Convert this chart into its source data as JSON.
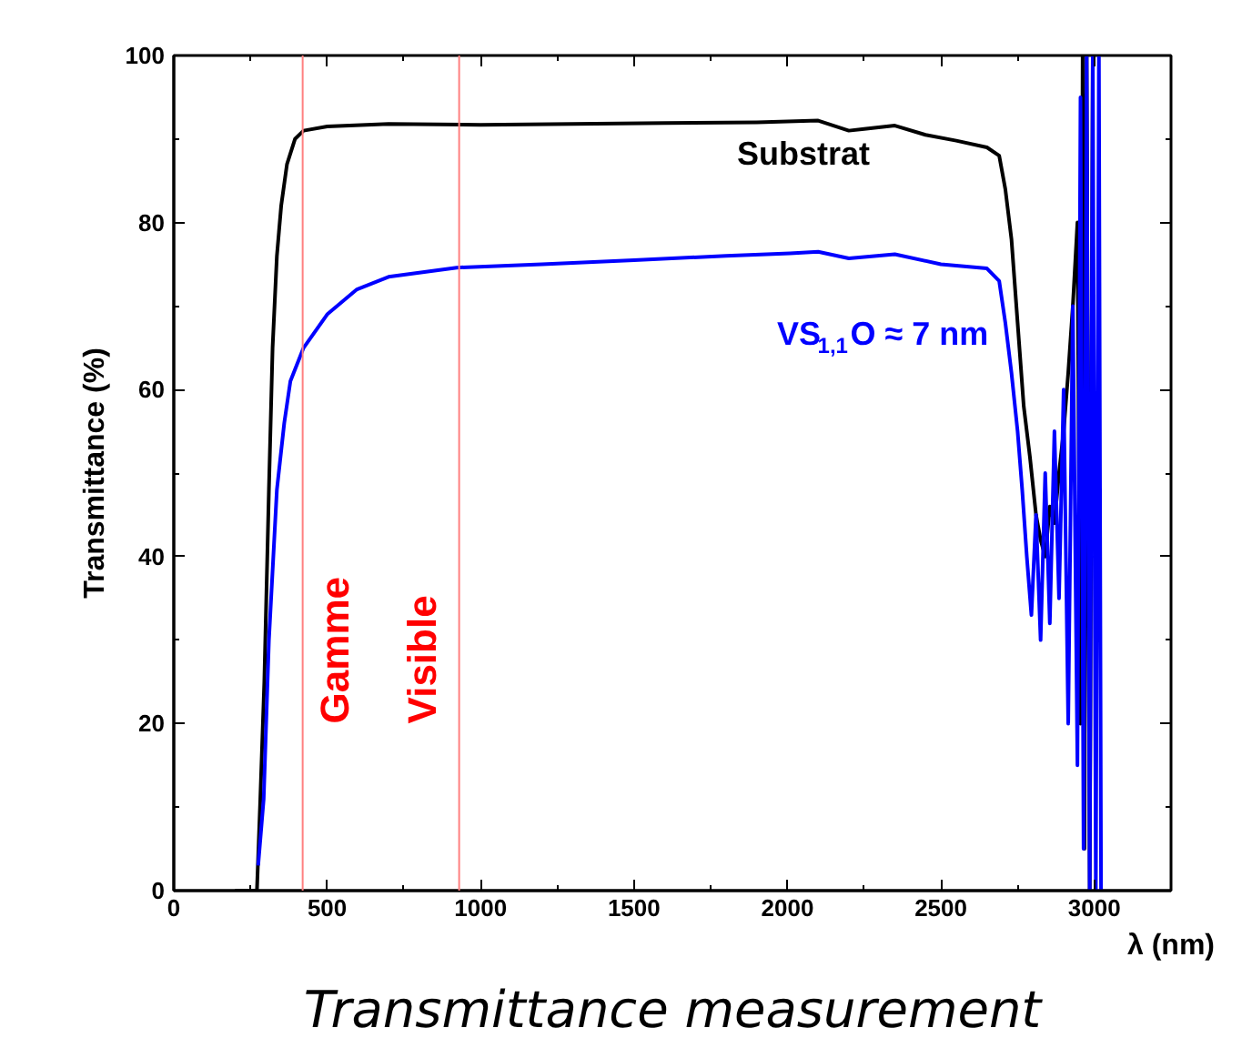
{
  "chart_data": {
    "type": "line",
    "xlabel": "λ (nm)",
    "ylabel": "Transmittance (%)",
    "xlim": [
      0,
      3250
    ],
    "ylim": [
      0,
      100
    ],
    "xticks": [
      0,
      500,
      1000,
      1500,
      2000,
      2500,
      3000
    ],
    "yticks": [
      0,
      20,
      40,
      60,
      80,
      100
    ],
    "grid": false,
    "line_style": "solid",
    "marker": "none",
    "series": [
      {
        "name": "Substrat",
        "color": "#000000",
        "x": [
          200,
          271,
          282,
          295,
          310,
          322,
          336,
          350,
          369,
          395,
          423,
          500,
          700,
          1000,
          1300,
          1600,
          1900,
          2100,
          2200,
          2250,
          2350,
          2450,
          2550,
          2650,
          2690,
          2710,
          2730,
          2750,
          2770,
          2790,
          2810,
          2825,
          2840,
          2855,
          2870,
          2885,
          2900,
          2915,
          2930,
          2945,
          2955,
          2962,
          2968,
          2975,
          2985,
          2995
        ],
        "values": [
          0,
          0,
          11,
          25,
          48,
          65,
          76,
          82,
          87,
          90,
          91,
          91.5,
          91.8,
          91.7,
          91.8,
          91.9,
          92,
          92.2,
          91,
          91.2,
          91.6,
          90.5,
          89.8,
          89,
          88,
          84,
          78,
          68,
          58,
          52,
          45,
          42,
          40,
          46,
          44,
          50,
          55,
          62,
          70,
          80,
          20,
          100,
          5,
          100,
          0,
          100
        ]
      },
      {
        "name": "VS$_{1,1}$O ≈ 7 nm",
        "color": "#0000ff",
        "x": [
          275,
          293,
          310,
          336,
          360,
          380,
          423,
          500,
          597,
          700,
          922,
          1200,
          1500,
          1800,
          2008,
          2100,
          2200,
          2350,
          2500,
          2650,
          2690,
          2710,
          2730,
          2750,
          2765,
          2780,
          2795,
          2810,
          2825,
          2840,
          2855,
          2870,
          2885,
          2900,
          2915,
          2930,
          2945,
          2955,
          2965,
          2975,
          2985,
          2995,
          3005,
          3015,
          3022
        ],
        "values": [
          3,
          11,
          30,
          48,
          56,
          61,
          65,
          69,
          72,
          73.5,
          74.6,
          75,
          75.5,
          76,
          76.3,
          76.5,
          75.7,
          76.2,
          75,
          74.5,
          73,
          68,
          62,
          55,
          48,
          40,
          33,
          45,
          30,
          50,
          32,
          55,
          35,
          60,
          20,
          70,
          15,
          95,
          5,
          100,
          0,
          100,
          0,
          100,
          0
        ]
      }
    ],
    "ref_lines": [
      {
        "axis": "x",
        "value": 420,
        "color": "#ff8080",
        "label": "Gamme"
      },
      {
        "axis": "x",
        "value": 930,
        "color": "#ff8080",
        "label": "Visible"
      }
    ],
    "annotations": [
      "Transmittance measurement"
    ]
  }
}
